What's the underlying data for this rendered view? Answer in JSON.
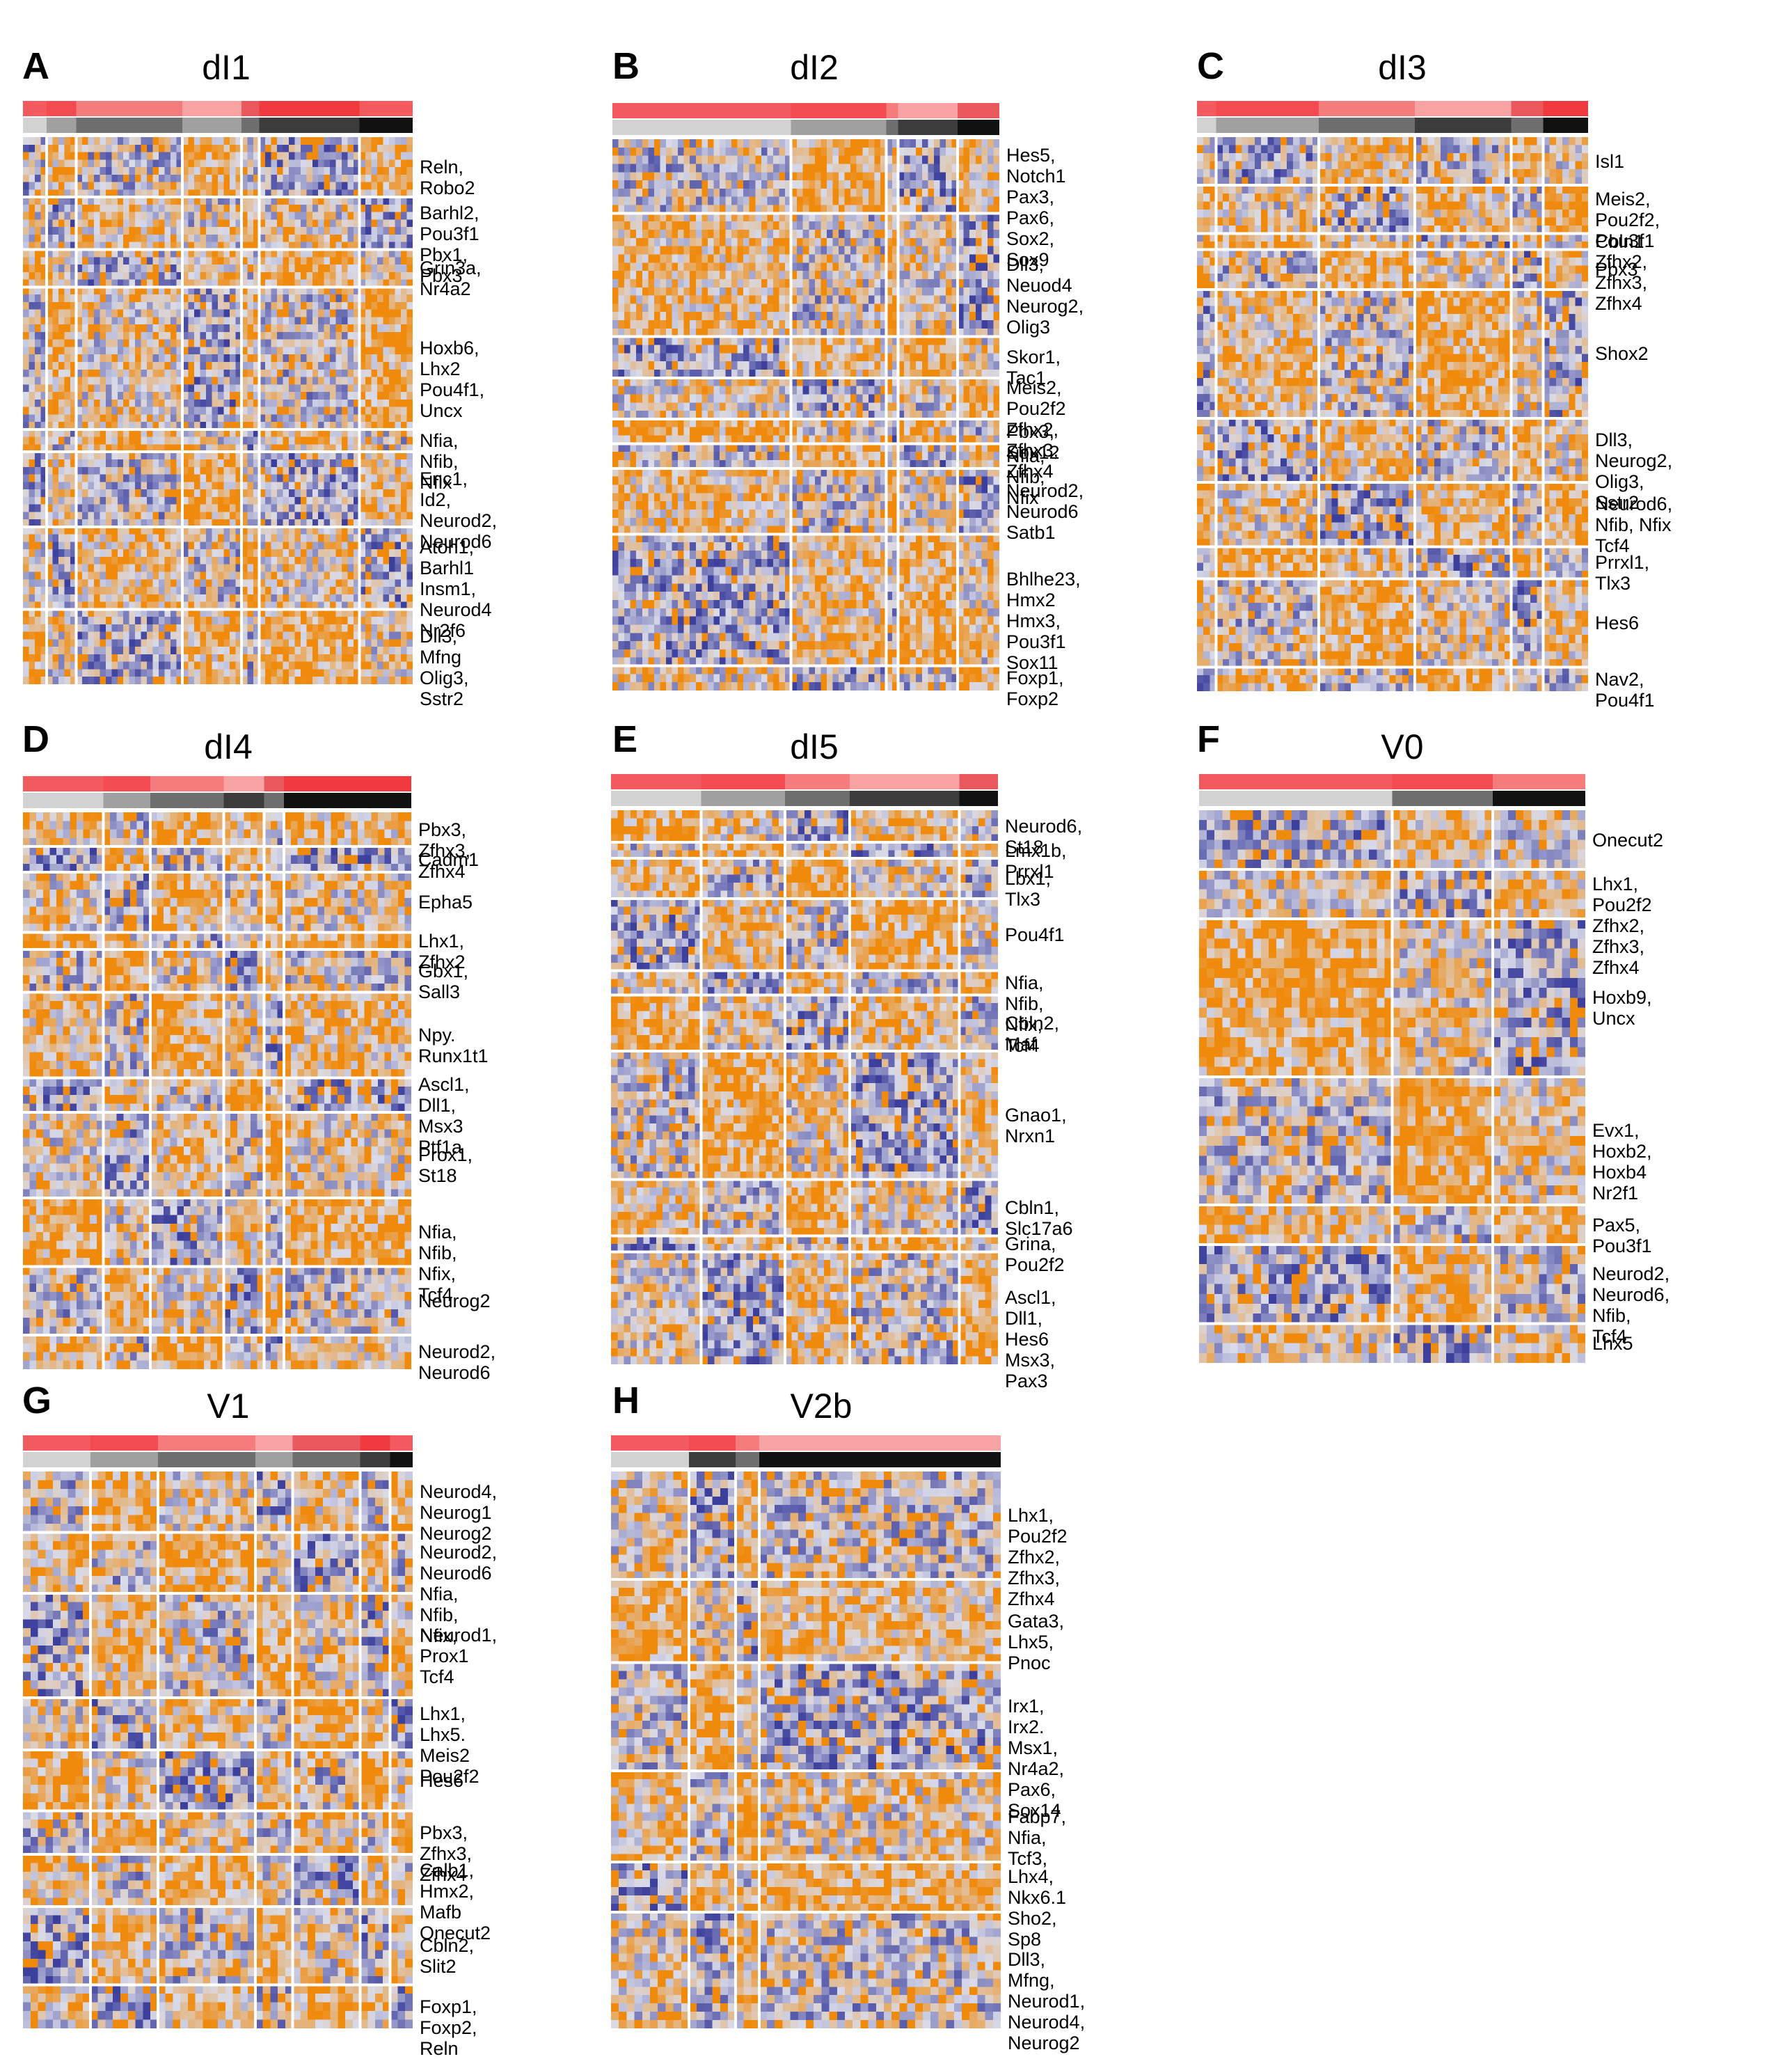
{
  "colors": {
    "expr_high": "#f08a0c",
    "expr_mid": "#d9dbe9",
    "expr_low": "#3c3f9c",
    "divider": "#ffffff",
    "cluster_bar": [
      "#f15a5f",
      "#f24b52",
      "#f57c7c",
      "#f7a3a3",
      "#e8585c",
      "#f03a40"
    ],
    "stage_bar": [
      "#d2d2d2",
      "#a0a0a0",
      "#6e6e6e",
      "#3c3c3c",
      "#111111"
    ]
  },
  "panels": [
    {
      "letter": "A",
      "title": "dI1",
      "columns": [
        4,
        5,
        18,
        10,
        3,
        17,
        9
      ],
      "stage": [
        0,
        1,
        2,
        1,
        2,
        3,
        4
      ],
      "rows": [
        {
          "n": 8,
          "label": "Reln, Robo2"
        },
        {
          "n": 7,
          "label": "Barhl2, Pou3f1\nPbx1, Pbx3"
        },
        {
          "n": 5,
          "label": "Grin3a, Nr4a2"
        },
        {
          "n": 19,
          "label": "Hoxb6, Lhx2\nPou4f1, Uncx"
        },
        {
          "n": 3,
          "label": "Nfia, Nfib, Nfix"
        },
        {
          "n": 10,
          "label": "Enc1, Id2,\nNeurod2, Neurod6"
        },
        {
          "n": 11,
          "label": "Atoh1, Barhl1\nInsm1, Neurod4\nNr2f6"
        },
        {
          "n": 10,
          "label": "Dll3, Mfng\nOlig3, Sstr2"
        }
      ]
    },
    {
      "letter": "B",
      "title": "dI2",
      "columns": [
        30,
        16,
        2,
        10,
        7
      ],
      "stage": [
        0,
        1,
        2,
        3,
        4
      ],
      "rows": [
        {
          "n": 9,
          "label": "Hes5, Notch1\nPax3, Pax6,\nSox2, Sox9"
        },
        {
          "n": 15,
          "label": "Dll3, Neuod4\nNeurog2, Olig3"
        },
        {
          "n": 5,
          "label": "Skor1, Tac1"
        },
        {
          "n": 5,
          "label": "Meis2, Pou2f2\nZfhx2, Zfhx3, Zfhx4"
        },
        {
          "n": 3,
          "label": "Pbx3, Sox12"
        },
        {
          "n": 3,
          "label": "Nfia, Nfib, Nfix"
        },
        {
          "n": 8,
          "label": "Neurod2, Neurod6\nSatb1"
        },
        {
          "n": 16,
          "label": "Bhlhe23, Hmx2\nHmx3, Pou3f1\nSox11"
        },
        {
          "n": 3,
          "label": "Foxp1, Foxp2"
        }
      ]
    },
    {
      "letter": "C",
      "title": "dI3",
      "columns": [
        3,
        16,
        15,
        15,
        5,
        7
      ],
      "stage": [
        0,
        1,
        2,
        3,
        2,
        4
      ],
      "rows": [
        {
          "n": 6,
          "label": "Isl1"
        },
        {
          "n": 6,
          "label": "Meis2, Pou2f2, Pou3f1\nZfhx2, Zfhx3, Zfhx4"
        },
        {
          "n": 2,
          "label": "Cbln1"
        },
        {
          "n": 5,
          "label": "Pbx3"
        },
        {
          "n": 16,
          "label": "Shox2"
        },
        {
          "n": 8,
          "label": "Dll3, Neurog2,\nOlig3, Sstr2"
        },
        {
          "n": 8,
          "label": "Neurod6, Nfib, Nfix\nTcf4"
        },
        {
          "n": 4,
          "label": "Prrxl1, Tlx3"
        },
        {
          "n": 11,
          "label": "Hes6"
        },
        {
          "n": 3,
          "label": "Nav2, Pou4f1"
        }
      ]
    },
    {
      "letter": "D",
      "title": "dI4",
      "columns": [
        12,
        7,
        11,
        6,
        3,
        19
      ],
      "stage": [
        0,
        1,
        2,
        3,
        2,
        4
      ],
      "rows": [
        {
          "n": 4,
          "label": "Pbx3, Zfhx3, Zfhx4"
        },
        {
          "n": 3,
          "label": "Cadm1"
        },
        {
          "n": 7,
          "label": "Epha5"
        },
        {
          "n": 2,
          "label": "Lhx1, Zfhx2"
        },
        {
          "n": 5,
          "label": "Gbx1, Sall3"
        },
        {
          "n": 10,
          "label": "Npy. Runx1t1"
        },
        {
          "n": 4,
          "label": "Ascl1, Dll1, Msx3\nPtf1a"
        },
        {
          "n": 10,
          "label": "Prox1, St18"
        },
        {
          "n": 8,
          "label": "Nfia, Nfib, Nfix, Tcf4"
        },
        {
          "n": 8,
          "label": "Neurog2"
        },
        {
          "n": 4,
          "label": "Neurod2, Neurod6"
        }
      ]
    },
    {
      "letter": "E",
      "title": "dI5",
      "columns": [
        14,
        13,
        10,
        17,
        6
      ],
      "stage": [
        0,
        1,
        2,
        3,
        4
      ],
      "rows": [
        {
          "n": 4,
          "label": "Neurod6, St18"
        },
        {
          "n": 2,
          "label": "Lmx1b, Prrxl1"
        },
        {
          "n": 5,
          "label": "Lbx1, Tlx3"
        },
        {
          "n": 9,
          "label": "Pou4f1"
        },
        {
          "n": 3,
          "label": "Nfia, Nfib, Nfix, Tcf4"
        },
        {
          "n": 7,
          "label": "Cbln2, Maf"
        },
        {
          "n": 16,
          "label": "Gnao1, Nrxn1"
        },
        {
          "n": 7,
          "label": "Cbln1, Slc17a6"
        },
        {
          "n": 2,
          "label": "Grina, Pou2f2"
        },
        {
          "n": 14,
          "label": "Ascl1, Dll1, Hes6\nMsx3, Pax3"
        }
      ]
    },
    {
      "letter": "F",
      "title": "V0",
      "columns": [
        25,
        13,
        12
      ],
      "stage": [
        0,
        2,
        4
      ],
      "rows": [
        {
          "n": 6,
          "label": "Onecut2"
        },
        {
          "n": 5,
          "label": "Lhx1, Pou2f2\nZfhx2, Zfhx3, Zfhx4"
        },
        {
          "n": 16,
          "label": "Hoxb9, Uncx"
        },
        {
          "n": 13,
          "label": "Evx1, Hoxb2, Hoxb4\nNr2f1"
        },
        {
          "n": 4,
          "label": "Pax5, Pou3f1"
        },
        {
          "n": 8,
          "label": "Neurod2, Neurod6,\nNfib, Tcf4"
        },
        {
          "n": 4,
          "label": "Lhx5"
        }
      ]
    },
    {
      "letter": "G",
      "title": "V1",
      "columns": [
        9,
        9,
        13,
        5,
        9,
        4,
        3
      ],
      "stage": [
        0,
        1,
        2,
        1,
        2,
        3,
        4
      ],
      "rows": [
        {
          "n": 7,
          "label": "Neurod4, Neurog1\nNeurog2"
        },
        {
          "n": 7,
          "label": "Neurod2, Neurod6\nNfia, Nfib, Nfix,"
        },
        {
          "n": 12,
          "label": "Neurod1, Prox1\nTcf4"
        },
        {
          "n": 6,
          "label": "Lhx1, Lhx5. Meis2\nPou2f2"
        },
        {
          "n": 7,
          "label": "Hes6"
        },
        {
          "n": 5,
          "label": "Pbx3, Zfhx3, Zfhx4"
        },
        {
          "n": 6,
          "label": "Calb1, Hmx2, Mafb\nOnecut2"
        },
        {
          "n": 9,
          "label": "Cbln2, Slit2"
        },
        {
          "n": 5,
          "label": "Foxp1, Foxp2, Reln"
        }
      ]
    },
    {
      "letter": "H",
      "title": "V2b",
      "columns": [
        10,
        6,
        3,
        31
      ],
      "stage": [
        0,
        3,
        2,
        4
      ],
      "rows": [
        {
          "n": 13,
          "label": "Lhx1, Pou2f2\nZfhx2, Zfhx3, Zfhx4"
        },
        {
          "n": 10,
          "label": "Gata3, Lhx5, Pnoc"
        },
        {
          "n": 13,
          "label": "Irx1, Irx2. Msx1,\nNr4a2, Pax6, Sox14"
        },
        {
          "n": 11,
          "label": "Fabp7, Nfia, Tcf3,"
        },
        {
          "n": 6,
          "label": "Lhx4, Nkx6.1\nSho2, Sp8"
        },
        {
          "n": 14,
          "label": "Dll3, Mfng, Neurod1,\nNeurod4, Neurog2"
        }
      ]
    }
  ]
}
